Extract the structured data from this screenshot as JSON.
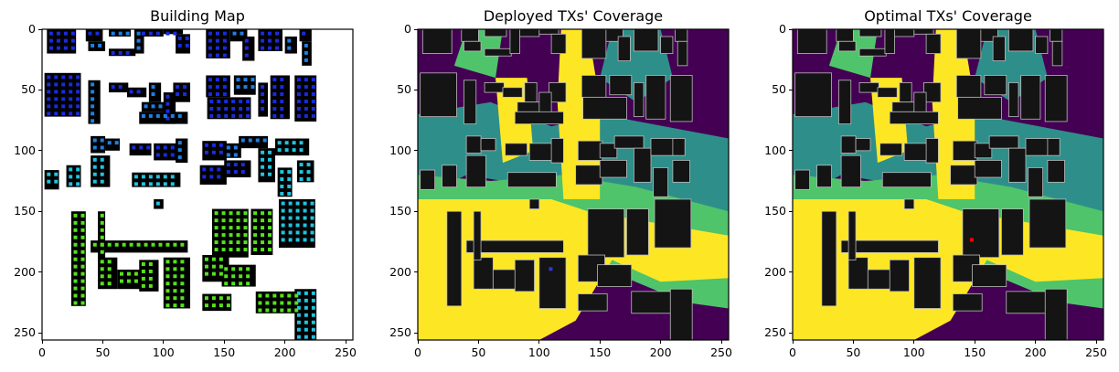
{
  "chart_data": [
    {
      "type": "heatmap",
      "title": "Building Map",
      "xlim": [
        0,
        256
      ],
      "ylim": [
        256,
        0
      ],
      "xticks": [
        0,
        50,
        100,
        150,
        200,
        250
      ],
      "yticks": [
        0,
        50,
        100,
        150,
        200,
        250
      ],
      "grid": false,
      "background_color": "#ffffff",
      "building_color": "#000000",
      "marker_colors": [
        "#1a2bdb",
        "#1f7fe0",
        "#21c3df",
        "#55e21b"
      ]
    },
    {
      "type": "heatmap",
      "title": "Deployed TXs' Coverage",
      "xlim": [
        0,
        256
      ],
      "ylim": [
        256,
        0
      ],
      "xticks": [
        0,
        50,
        100,
        150,
        200,
        250
      ],
      "yticks": [
        0,
        50,
        100,
        150,
        200,
        250
      ],
      "grid": false,
      "colormap": [
        "#440154",
        "#2e8f8a",
        "#4fc46a",
        "#fde725"
      ],
      "building_color": "#141414",
      "transmitter_color": "#2d38d6"
    },
    {
      "type": "heatmap",
      "title": "Optimal TXs' Coverage",
      "xlim": [
        0,
        256
      ],
      "ylim": [
        256,
        0
      ],
      "xticks": [
        0,
        50,
        100,
        150,
        200,
        250
      ],
      "yticks": [
        0,
        50,
        100,
        150,
        200,
        250
      ],
      "grid": false,
      "colormap": [
        "#440154",
        "#2e8f8a",
        "#4fc46a",
        "#fde725"
      ],
      "building_color": "#141414",
      "transmitter_color": "#ff0000"
    }
  ]
}
